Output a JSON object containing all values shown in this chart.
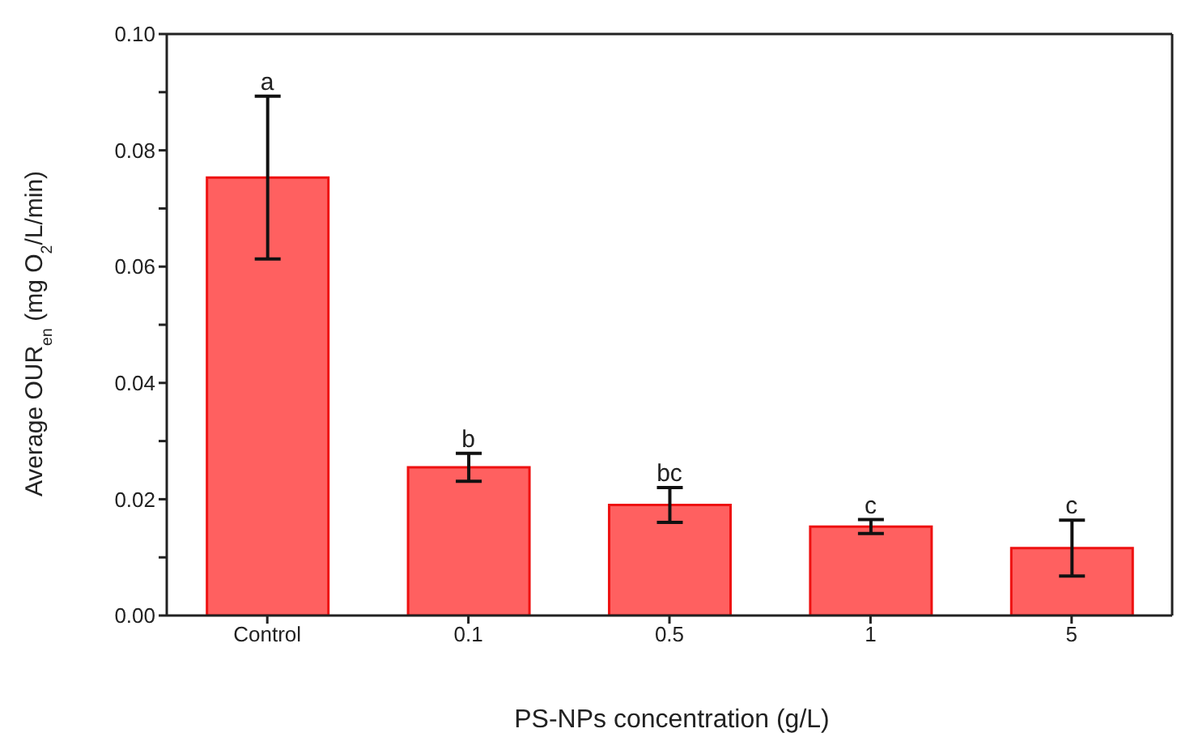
{
  "chart_data": {
    "type": "bar",
    "xlabel": "PS-NPs concentration (g/L)",
    "ylabel": "Average OUR$_{en}$ (mg O$_{2}$/L/min)",
    "categories": [
      "Control",
      "0.1",
      "0.5",
      "1",
      "5"
    ],
    "values": [
      0.0753,
      0.0255,
      0.019,
      0.0153,
      0.0116
    ],
    "errors": [
      0.014,
      0.0024,
      0.003,
      0.0012,
      0.0048
    ],
    "color": "#ff6060",
    "ylim": [
      0,
      0.1
    ],
    "yticks": [
      {
        "value": 0,
        "label": "0.00"
      },
      {
        "value": 0.01,
        "label": null
      },
      {
        "value": 0.02,
        "label": "0.02"
      },
      {
        "value": 0.03,
        "label": null
      },
      {
        "value": 0.04,
        "label": "0.04"
      },
      {
        "value": 0.05,
        "label": null
      },
      {
        "value": 0.06,
        "label": "0.06"
      },
      {
        "value": 0.07,
        "label": null
      },
      {
        "value": 0.08,
        "label": "0.08"
      },
      {
        "value": 0.09,
        "label": null
      },
      {
        "value": 0.1,
        "label": "0.10"
      }
    ],
    "annotations": [
      {
        "text": "a",
        "x": "Control",
        "y": 0.0893
      },
      {
        "text": "b",
        "x": "0.1",
        "y": 0.0279
      },
      {
        "text": "bc",
        "x": "0.5",
        "y": 0.022
      },
      {
        "text": "c",
        "x": "1",
        "y": 0.0165
      },
      {
        "text": "c",
        "x": "5",
        "y": 0.0164
      }
    ],
    "grid": false
  }
}
